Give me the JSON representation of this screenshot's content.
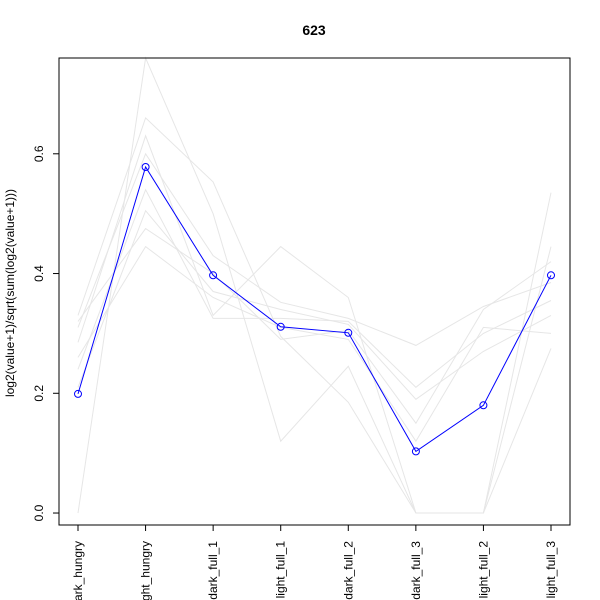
{
  "chart_data": {
    "type": "line",
    "title": "623",
    "xlabel": "",
    "ylabel": "log2(value+1)/sqrt(sum(log2(value+1)))",
    "categories": [
      "dark_hungry",
      "light_hungry",
      "dark_full_1",
      "light_full_1",
      "dark_full_2",
      "dark_full_3",
      "light_full_2",
      "light_full_3"
    ],
    "visible_category_labels": [
      "ark_hungry",
      "ght_hungry",
      "dark_full_1",
      "light_full_1",
      "dark_full_2",
      "dark_full_3",
      "light_full_2",
      "light_full_3"
    ],
    "ylim": [
      -0.02,
      0.76
    ],
    "yticks": [
      "0.0",
      "0.2",
      "0.4",
      "0.6"
    ],
    "yticks_values": [
      0.0,
      0.2,
      0.4,
      0.6
    ],
    "grid": false,
    "legend": "none",
    "highlight": {
      "values": [
        0.199,
        0.578,
        0.397,
        0.311,
        0.301,
        0.103,
        0.18,
        0.397
      ],
      "color": "#0000ff",
      "marker": "open-circle"
    },
    "background_series": [
      {
        "values": [
          0.0,
          0.76,
          0.5,
          0.12,
          0.245,
          0.0,
          0.0,
          0.535
        ]
      },
      {
        "values": [
          0.33,
          0.66,
          0.553,
          0.295,
          0.185,
          0.0,
          0.0,
          0.275
        ]
      },
      {
        "values": [
          0.285,
          0.63,
          0.33,
          0.445,
          0.36,
          0.0,
          0.0,
          0.445
        ]
      },
      {
        "values": [
          0.31,
          0.6,
          0.43,
          0.352,
          0.325,
          0.28,
          0.345,
          0.385
        ]
      },
      {
        "values": [
          0.24,
          0.54,
          0.325,
          0.325,
          0.32,
          0.21,
          0.3,
          0.355
        ]
      },
      {
        "values": [
          0.21,
          0.505,
          0.37,
          0.34,
          0.315,
          0.19,
          0.27,
          0.33
        ]
      },
      {
        "values": [
          0.32,
          0.475,
          0.4,
          0.29,
          0.305,
          0.15,
          0.34,
          0.42
        ]
      },
      {
        "values": [
          0.26,
          0.445,
          0.36,
          0.31,
          0.29,
          0.12,
          0.31,
          0.3
        ]
      }
    ],
    "background_color": "#e6e6e6"
  }
}
